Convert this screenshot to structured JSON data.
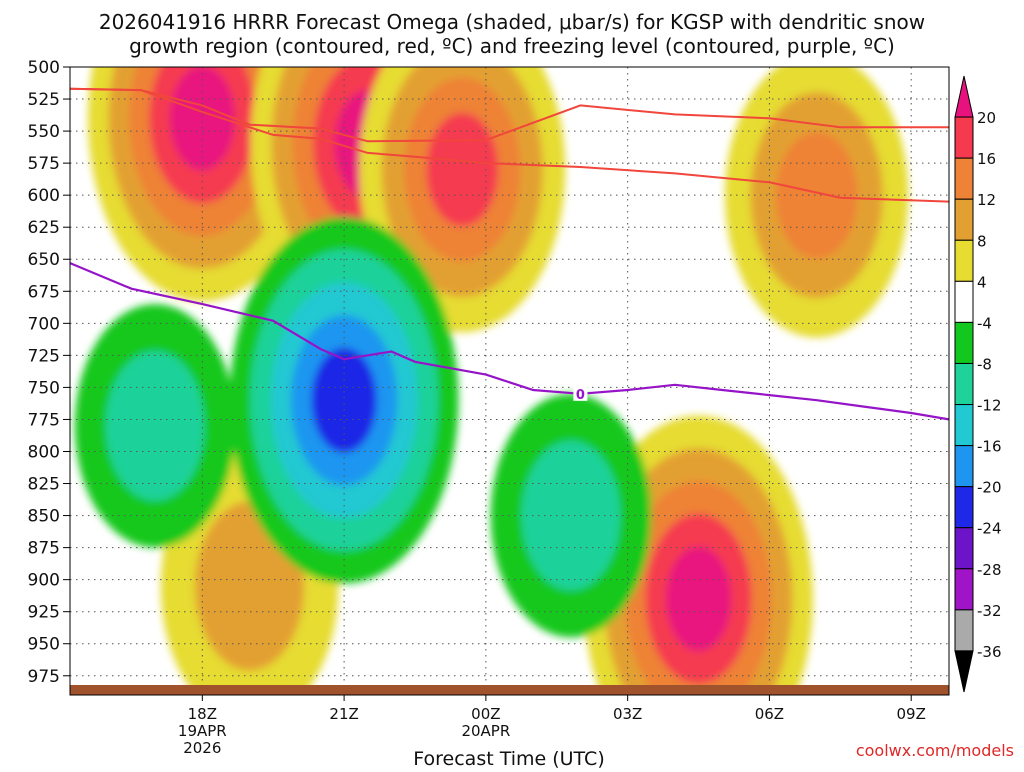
{
  "chart_data": {
    "type": "time-height cross section",
    "title_line1": "2026041916 HRRR Forecast Omega (shaded, μbar/s) for KGSP with dendritic snow",
    "title_line2": "growth region (contoured, red, ºC) and freezing level (contoured, purple, ºC)",
    "xlabel": "Forecast Time (UTC)",
    "ylabel": "",
    "y_pressure_range_mb": [
      500,
      990
    ],
    "y_ticks_mb": [
      500,
      525,
      550,
      575,
      600,
      625,
      650,
      675,
      700,
      725,
      750,
      775,
      800,
      825,
      850,
      875,
      900,
      925,
      950,
      975
    ],
    "x_range_hours_from_00z_20apr": [
      -8.8,
      9.8
    ],
    "x_ticks": [
      {
        "hour": -6,
        "lines": [
          "18Z",
          "19APR",
          "2026"
        ]
      },
      {
        "hour": -3,
        "lines": [
          "21Z"
        ]
      },
      {
        "hour": 0,
        "lines": [
          "00Z",
          "20APR"
        ]
      },
      {
        "hour": 3,
        "lines": [
          "03Z"
        ]
      },
      {
        "hour": 6,
        "lines": [
          "06Z"
        ]
      },
      {
        "hour": 9,
        "lines": [
          "09Z"
        ]
      }
    ],
    "colorbar": {
      "labels": [
        "20",
        "16",
        "12",
        "8",
        "4",
        "-4",
        "-8",
        "-12",
        "-16",
        "-20",
        "-24",
        "-28",
        "-32",
        "-36"
      ],
      "bins": [
        {
          "lo": 20,
          "hi": 24,
          "color": "#e8127e",
          "shape": "arrow"
        },
        {
          "lo": 16,
          "hi": 20,
          "color": "#f53a50"
        },
        {
          "lo": 12,
          "hi": 16,
          "color": "#ee8236"
        },
        {
          "lo": 8,
          "hi": 12,
          "color": "#e3a032"
        },
        {
          "lo": 4,
          "hi": 8,
          "color": "#e6dc32"
        },
        {
          "lo": -4,
          "hi": 4,
          "color": "#ffffff"
        },
        {
          "lo": -8,
          "hi": -4,
          "color": "#12c81e"
        },
        {
          "lo": -12,
          "hi": -8,
          "color": "#1ed29a"
        },
        {
          "lo": -16,
          "hi": -12,
          "color": "#22c8d2"
        },
        {
          "lo": -20,
          "hi": -16,
          "color": "#1e96f0"
        },
        {
          "lo": -24,
          "hi": -20,
          "color": "#1e28e6"
        },
        {
          "lo": -28,
          "hi": -24,
          "color": "#6e14c8"
        },
        {
          "lo": -32,
          "hi": -28,
          "color": "#a014c8"
        },
        {
          "lo": -36,
          "hi": -32,
          "color": "#aaaaaa"
        },
        {
          "lo": -40,
          "hi": -36,
          "color": "#000000",
          "shape": "arrow"
        }
      ]
    },
    "omega_features": [
      {
        "desc": "upward motion plume",
        "center_hour": -6,
        "center_mb": 540,
        "peak_value": 22
      },
      {
        "desc": "strong upward motion core",
        "center_hour": -2.5,
        "center_mb": 560,
        "peak_value": 23
      },
      {
        "desc": "upward motion",
        "center_hour": -0.5,
        "center_mb": 580,
        "peak_value": 18
      },
      {
        "desc": "broad upward motion",
        "center_hour": 7,
        "center_mb": 600,
        "peak_value": 14
      },
      {
        "desc": "low-level upward motion",
        "center_hour": -5,
        "center_mb": 905,
        "peak_value": 13
      },
      {
        "desc": "low-level upward motion core",
        "center_hour": 4.5,
        "center_mb": 915,
        "peak_value": 22
      },
      {
        "desc": "downward motion",
        "center_hour": -3,
        "center_mb": 760,
        "peak_value": -22
      },
      {
        "desc": "downward motion",
        "center_hour": -7,
        "center_mb": 780,
        "peak_value": -10
      },
      {
        "desc": "downward motion",
        "center_hour": 1.8,
        "center_mb": 850,
        "peak_value": -10
      }
    ],
    "dgz_lines": [
      {
        "name": "upper -12C contour",
        "points": [
          [
            -8.8,
            517
          ],
          [
            -7.3,
            518
          ],
          [
            -6,
            530
          ],
          [
            -5,
            545
          ],
          [
            -3.5,
            548
          ],
          [
            -2.5,
            558
          ],
          [
            0,
            557
          ],
          [
            2,
            530
          ],
          [
            4,
            537
          ],
          [
            6,
            540
          ],
          [
            7.5,
            547
          ],
          [
            9.8,
            547
          ]
        ]
      },
      {
        "name": "lower -18C contour",
        "points": [
          [
            -8.8,
            517
          ],
          [
            -7.3,
            518
          ],
          [
            -6,
            535
          ],
          [
            -4.5,
            553
          ],
          [
            -3.5,
            556
          ],
          [
            -2.5,
            567
          ],
          [
            -1.5,
            570
          ],
          [
            0,
            575
          ],
          [
            2,
            578
          ],
          [
            4,
            583
          ],
          [
            6,
            590
          ],
          [
            7.5,
            602
          ],
          [
            9.8,
            605
          ]
        ]
      }
    ],
    "freezing_level": {
      "label": "0",
      "points": [
        [
          -8.8,
          653
        ],
        [
          -7.5,
          673
        ],
        [
          -6,
          685
        ],
        [
          -4.5,
          698
        ],
        [
          -3.5,
          720
        ],
        [
          -3,
          728
        ],
        [
          -2,
          722
        ],
        [
          -1.5,
          730
        ],
        [
          0,
          740
        ],
        [
          1,
          752
        ],
        [
          2,
          755
        ],
        [
          3,
          752
        ],
        [
          4,
          748
        ],
        [
          5,
          752
        ],
        [
          6,
          756
        ],
        [
          7,
          760
        ],
        [
          8,
          765
        ],
        [
          9,
          770
        ],
        [
          9.8,
          775
        ]
      ]
    },
    "surface_terrain_color": "#a0522d",
    "line_colors": {
      "dgz": "#f0463c",
      "freezing": "#9614c8"
    },
    "watermark": "coolwx.com/models"
  }
}
